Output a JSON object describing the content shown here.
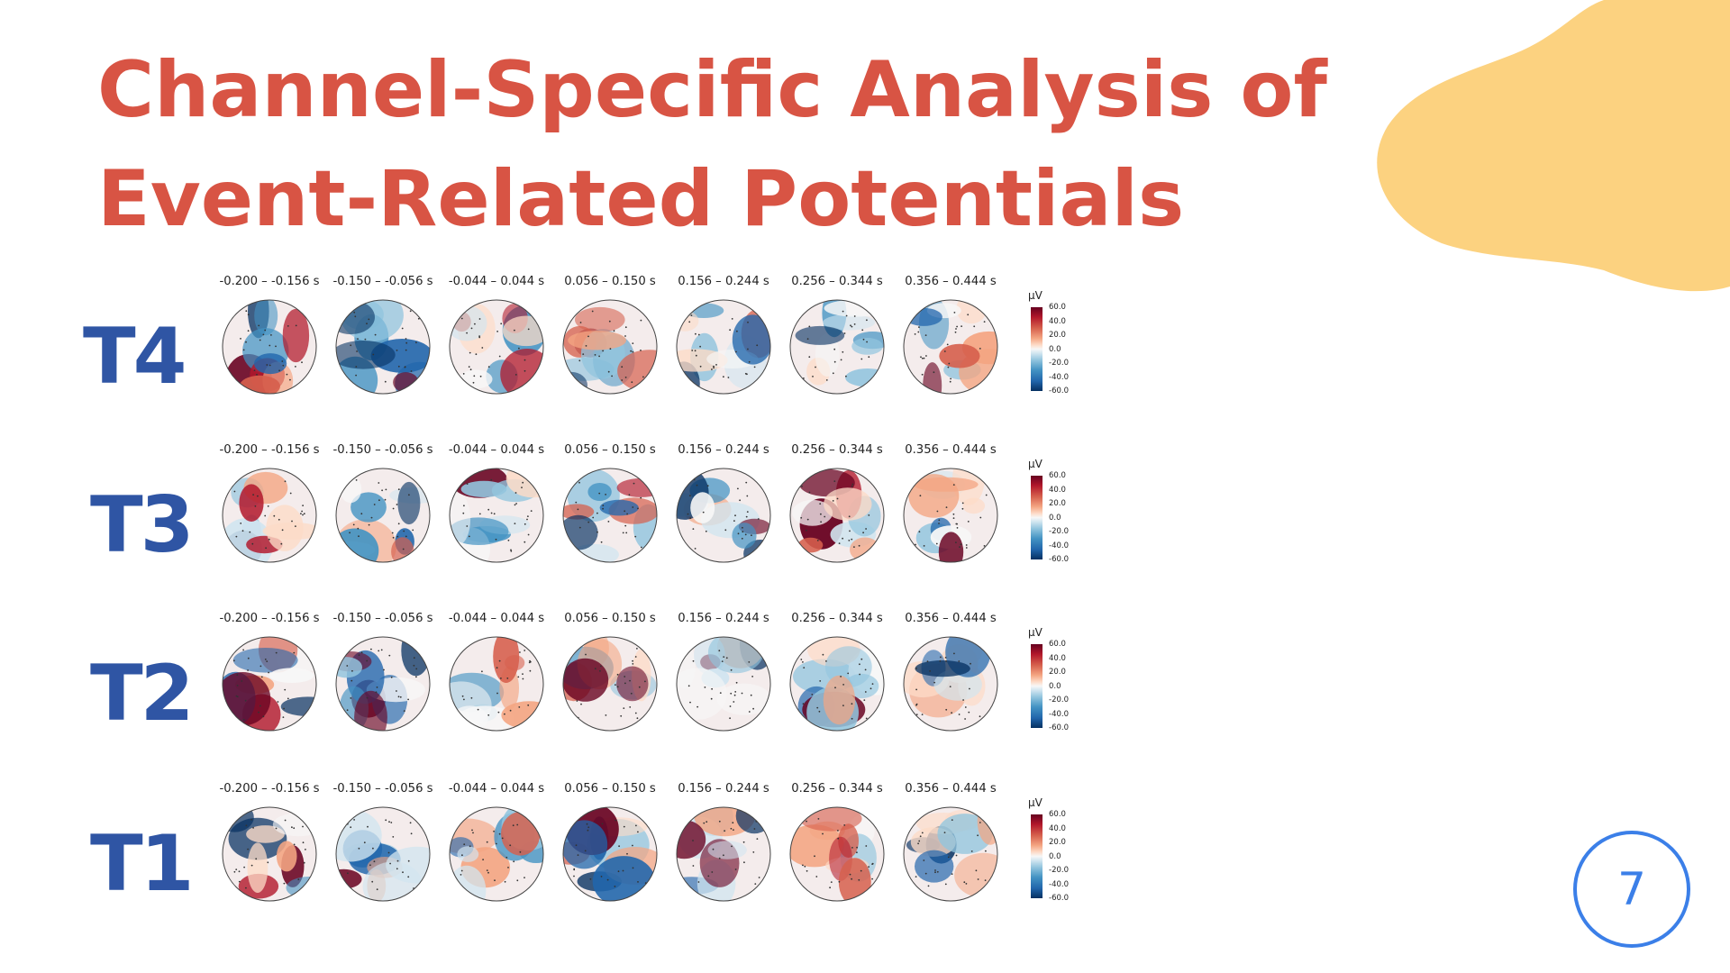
{
  "slide": {
    "title_line1": "Channel-Specific Analysis of",
    "title_line2": "Event-Related Potentials",
    "page_number": "7",
    "colors": {
      "title": "#D85444",
      "row_label": "#2F55A4",
      "blob": "#FCD280",
      "page_number": "#3B7FE8"
    }
  },
  "time_windows": [
    "-0.200 – -0.156 s",
    "-0.150 – -0.056 s",
    "-0.044 – 0.044 s",
    "0.056 – 0.150 s",
    "0.156 – 0.244 s",
    "0.256 – 0.344 s",
    "0.356 – 0.444 s"
  ],
  "colorbar": {
    "unit": "µV",
    "ticks": [
      "60.0",
      "40.0",
      "20.0",
      "0.0",
      "-20.0",
      "-40.0",
      "-60.0"
    ],
    "colormap": "red-white-blue"
  },
  "rows": [
    {
      "label": "T4"
    },
    {
      "label": "T3"
    },
    {
      "label": "T2"
    },
    {
      "label": "T1"
    }
  ]
}
